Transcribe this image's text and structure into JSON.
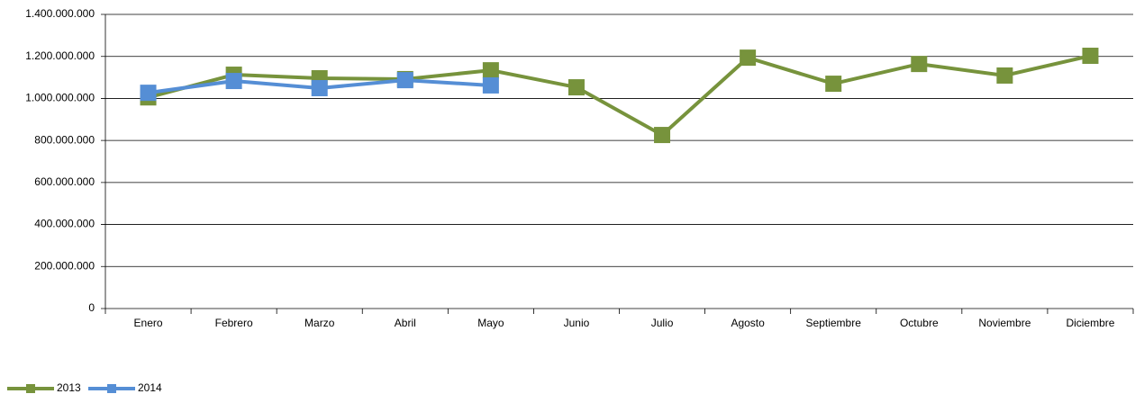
{
  "chart_data": {
    "type": "line",
    "categories": [
      "Enero",
      "Febrero",
      "Marzo",
      "Abril",
      "Mayo",
      "Junio",
      "Julio",
      "Agosto",
      "Septiembre",
      "Octubre",
      "Noviembre",
      "Diciembre"
    ],
    "series": [
      {
        "name": "2013",
        "color": "#77933c",
        "values": [
          1005000000,
          1113000000,
          1096000000,
          1092000000,
          1134000000,
          1053000000,
          826000000,
          1194000000,
          1070000000,
          1164000000,
          1109000000,
          1203000000
        ]
      },
      {
        "name": "2014",
        "color": "#558ed5",
        "values": [
          1027000000,
          1083000000,
          1049000000,
          1087000000,
          1062000000,
          null,
          null,
          null,
          null,
          null,
          null,
          null
        ]
      }
    ],
    "ylim": [
      0,
      1400000000
    ],
    "yticks": [
      0,
      {
        "value": 200000000,
        "label": "200.000.000"
      },
      {
        "value": 400000000,
        "label": "400.000.000"
      },
      {
        "value": 600000000,
        "label": "600.000.000"
      },
      {
        "value": 800000000,
        "label": "800.000.000"
      },
      {
        "value": 1000000000,
        "label": "1.000.000.000"
      },
      {
        "value": 1200000000,
        "label": "1.200.000.000"
      },
      {
        "value": 1400000000,
        "label": "1.400.000.000"
      }
    ],
    "grid": true,
    "legend": "bottom-left"
  }
}
